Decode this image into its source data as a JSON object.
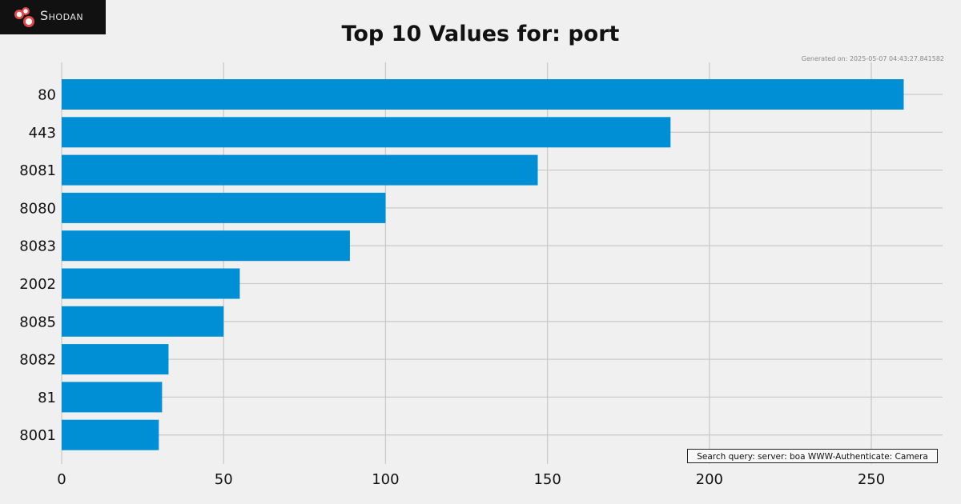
{
  "brand": {
    "name": "Shodan",
    "logo_icon": "shodan-logo-icon",
    "logo_color": "#e04a4a"
  },
  "generated_label": "Generated on: 2025-05-07 04:43:27.841582",
  "query_label": "Search query: server: boa WWW-Authenticate: Camera",
  "chart_data": {
    "type": "bar",
    "orientation": "horizontal",
    "title": "Top 10 Values for: port",
    "xlabel": "",
    "ylabel": "",
    "categories": [
      "80",
      "443",
      "8081",
      "8080",
      "8083",
      "2002",
      "8085",
      "8082",
      "81",
      "8001"
    ],
    "values": [
      260,
      188,
      147,
      100,
      89,
      55,
      50,
      33,
      31,
      30
    ],
    "xlim": [
      0,
      272
    ],
    "xticks": [
      0,
      50,
      100,
      150,
      200,
      250
    ],
    "grid": true,
    "bar_color": "#008fd5",
    "grid_color": "#cbcbcb"
  }
}
